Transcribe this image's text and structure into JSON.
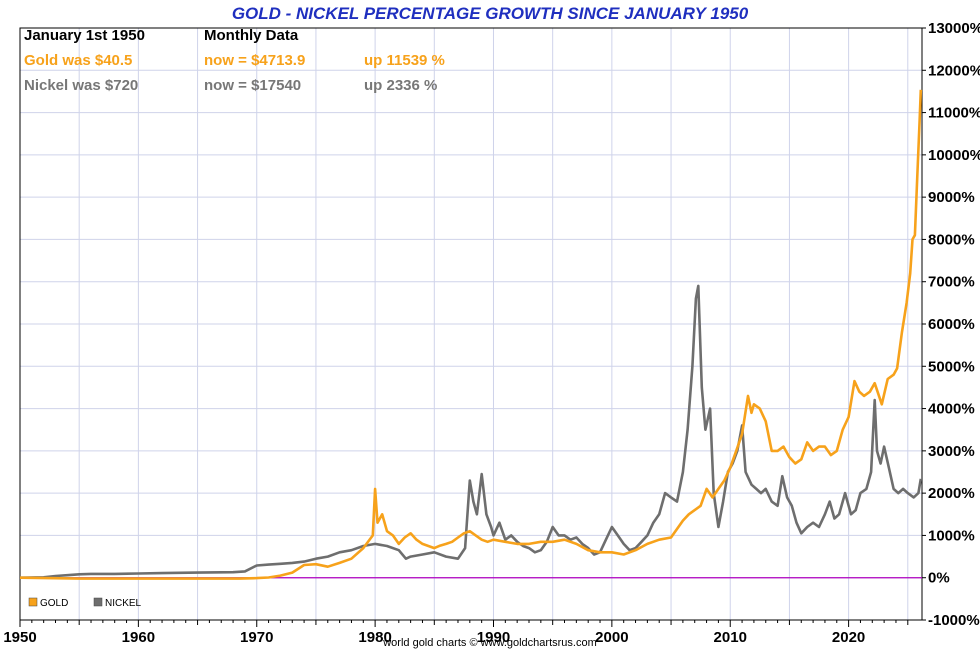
{
  "header": {
    "title": "GOLD - NICKEL PERCENTAGE GROWTH SINCE JANUARY 1950",
    "date_label": "January 1st 1950",
    "frequency_label": "Monthly Data",
    "gold_was": "Gold was $40.5",
    "gold_now": "now = $4713.9",
    "gold_up": "up 11539 %",
    "nickel_was": "Nickel was $720",
    "nickel_now": "now = $17540",
    "nickel_up": "up 2336 %"
  },
  "footer": {
    "credit": "world gold charts © www.goldchartsrus.com"
  },
  "colors": {
    "gold": "#f7a21b",
    "nickel": "#6e6e6e",
    "zero_line": "#b000c0",
    "grid": "#cfd3ea",
    "title": "#1f2fbf"
  },
  "chart_data": {
    "type": "line",
    "title": "GOLD - NICKEL PERCENTAGE GROWTH SINCE JANUARY 1950",
    "xlabel": "",
    "ylabel": "",
    "xlim": [
      1950,
      2026.2
    ],
    "ylim": [
      -1000,
      13000
    ],
    "x_ticks": [
      "1950",
      "1960",
      "1970",
      "1980",
      "1990",
      "2000",
      "2010",
      "2020"
    ],
    "x_tick_values": [
      1950,
      1960,
      1970,
      1980,
      1990,
      2000,
      2010,
      2020
    ],
    "y_ticks": [
      "-1000%",
      "0%",
      "1000%",
      "2000%",
      "3000%",
      "4000%",
      "5000%",
      "6000%",
      "7000%",
      "8000%",
      "9000%",
      "10000%",
      "11000%",
      "12000%",
      "13000%"
    ],
    "y_tick_values": [
      -1000,
      0,
      1000,
      2000,
      3000,
      4000,
      5000,
      6000,
      7000,
      8000,
      9000,
      10000,
      11000,
      12000,
      13000
    ],
    "grid": true,
    "legend_position": "bottom-left",
    "series": [
      {
        "name": "GOLD",
        "color": "#f7a21b",
        "points": [
          [
            1950,
            0
          ],
          [
            1955,
            -20
          ],
          [
            1960,
            -20
          ],
          [
            1965,
            -20
          ],
          [
            1968.5,
            -20
          ],
          [
            1970,
            -10
          ],
          [
            1971,
            5
          ],
          [
            1972,
            50
          ],
          [
            1973,
            120
          ],
          [
            1974,
            300
          ],
          [
            1975,
            320
          ],
          [
            1976,
            260
          ],
          [
            1977,
            350
          ],
          [
            1978,
            450
          ],
          [
            1979,
            700
          ],
          [
            1979.8,
            1000
          ],
          [
            1980.0,
            2100
          ],
          [
            1980.2,
            1300
          ],
          [
            1980.6,
            1500
          ],
          [
            1981,
            1100
          ],
          [
            1981.5,
            1000
          ],
          [
            1982,
            800
          ],
          [
            1982.5,
            950
          ],
          [
            1983,
            1050
          ],
          [
            1983.5,
            900
          ],
          [
            1984,
            800
          ],
          [
            1984.5,
            750
          ],
          [
            1985,
            700
          ],
          [
            1985.5,
            760
          ],
          [
            1986,
            800
          ],
          [
            1986.5,
            850
          ],
          [
            1987,
            950
          ],
          [
            1987.5,
            1050
          ],
          [
            1988,
            1100
          ],
          [
            1988.5,
            1000
          ],
          [
            1989,
            900
          ],
          [
            1989.5,
            850
          ],
          [
            1990,
            900
          ],
          [
            1991,
            850
          ],
          [
            1992,
            800
          ],
          [
            1993,
            800
          ],
          [
            1994,
            850
          ],
          [
            1995,
            850
          ],
          [
            1996,
            900
          ],
          [
            1997,
            800
          ],
          [
            1998,
            650
          ],
          [
            1999,
            600
          ],
          [
            2000,
            600
          ],
          [
            2001,
            550
          ],
          [
            2002,
            650
          ],
          [
            2003,
            800
          ],
          [
            2004,
            900
          ],
          [
            2005,
            950
          ],
          [
            2006,
            1350
          ],
          [
            2006.5,
            1500
          ],
          [
            2007,
            1600
          ],
          [
            2007.5,
            1700
          ],
          [
            2008,
            2100
          ],
          [
            2008.5,
            1900
          ],
          [
            2009,
            2100
          ],
          [
            2009.5,
            2300
          ],
          [
            2010,
            2600
          ],
          [
            2010.5,
            3000
          ],
          [
            2011,
            3400
          ],
          [
            2011.5,
            4300
          ],
          [
            2011.8,
            3900
          ],
          [
            2012,
            4100
          ],
          [
            2012.5,
            4000
          ],
          [
            2013,
            3700
          ],
          [
            2013.5,
            3000
          ],
          [
            2014,
            3000
          ],
          [
            2014.5,
            3100
          ],
          [
            2015,
            2850
          ],
          [
            2015.5,
            2700
          ],
          [
            2016,
            2800
          ],
          [
            2016.5,
            3200
          ],
          [
            2017,
            3000
          ],
          [
            2017.5,
            3100
          ],
          [
            2018,
            3100
          ],
          [
            2018.5,
            2900
          ],
          [
            2019,
            3000
          ],
          [
            2019.5,
            3500
          ],
          [
            2020,
            3800
          ],
          [
            2020.5,
            4650
          ],
          [
            2020.9,
            4400
          ],
          [
            2021.3,
            4300
          ],
          [
            2021.8,
            4400
          ],
          [
            2022.2,
            4600
          ],
          [
            2022.8,
            4100
          ],
          [
            2023.3,
            4700
          ],
          [
            2023.8,
            4800
          ],
          [
            2024.1,
            4950
          ],
          [
            2024.5,
            5800
          ],
          [
            2024.9,
            6500
          ],
          [
            2025.2,
            7200
          ],
          [
            2025.4,
            8000
          ],
          [
            2025.6,
            8100
          ],
          [
            2025.8,
            9500
          ],
          [
            2026.0,
            10800
          ],
          [
            2026.1,
            11539
          ]
        ]
      },
      {
        "name": "NICKEL",
        "color": "#6e6e6e",
        "points": [
          [
            1950,
            0
          ],
          [
            1952,
            10
          ],
          [
            1953,
            40
          ],
          [
            1954,
            60
          ],
          [
            1955,
            80
          ],
          [
            1956,
            90
          ],
          [
            1958,
            90
          ],
          [
            1960,
            100
          ],
          [
            1962,
            110
          ],
          [
            1965,
            120
          ],
          [
            1968,
            130
          ],
          [
            1969,
            150
          ],
          [
            1970,
            290
          ],
          [
            1971,
            310
          ],
          [
            1972,
            330
          ],
          [
            1973,
            350
          ],
          [
            1974,
            380
          ],
          [
            1975,
            450
          ],
          [
            1976,
            500
          ],
          [
            1977,
            600
          ],
          [
            1978,
            650
          ],
          [
            1979,
            750
          ],
          [
            1980,
            800
          ],
          [
            1981,
            750
          ],
          [
            1982,
            650
          ],
          [
            1982.6,
            450
          ],
          [
            1983,
            500
          ],
          [
            1984,
            550
          ],
          [
            1985,
            600
          ],
          [
            1986,
            500
          ],
          [
            1987,
            450
          ],
          [
            1987.6,
            700
          ],
          [
            1988.0,
            2300
          ],
          [
            1988.3,
            1800
          ],
          [
            1988.6,
            1500
          ],
          [
            1989.0,
            2450
          ],
          [
            1989.4,
            1500
          ],
          [
            1989.8,
            1200
          ],
          [
            1990,
            1000
          ],
          [
            1990.5,
            1300
          ],
          [
            1991,
            900
          ],
          [
            1991.5,
            1000
          ],
          [
            1992,
            850
          ],
          [
            1992.5,
            750
          ],
          [
            1993,
            700
          ],
          [
            1993.5,
            600
          ],
          [
            1994,
            650
          ],
          [
            1994.5,
            850
          ],
          [
            1995,
            1200
          ],
          [
            1995.5,
            1000
          ],
          [
            1996,
            1000
          ],
          [
            1996.5,
            900
          ],
          [
            1997,
            950
          ],
          [
            1997.5,
            800
          ],
          [
            1998,
            700
          ],
          [
            1998.5,
            550
          ],
          [
            1999,
            600
          ],
          [
            1999.5,
            900
          ],
          [
            2000,
            1200
          ],
          [
            2000.5,
            1000
          ],
          [
            2001,
            800
          ],
          [
            2001.5,
            650
          ],
          [
            2002,
            700
          ],
          [
            2002.5,
            850
          ],
          [
            2003,
            1000
          ],
          [
            2003.5,
            1300
          ],
          [
            2004,
            1500
          ],
          [
            2004.5,
            2000
          ],
          [
            2005,
            1900
          ],
          [
            2005.5,
            1800
          ],
          [
            2006,
            2500
          ],
          [
            2006.4,
            3500
          ],
          [
            2006.8,
            5000
          ],
          [
            2007.1,
            6600
          ],
          [
            2007.3,
            6900
          ],
          [
            2007.6,
            4500
          ],
          [
            2007.9,
            3500
          ],
          [
            2008.3,
            4000
          ],
          [
            2008.6,
            2000
          ],
          [
            2009.0,
            1200
          ],
          [
            2009.4,
            1800
          ],
          [
            2009.8,
            2500
          ],
          [
            2010.2,
            2700
          ],
          [
            2010.6,
            3000
          ],
          [
            2011.0,
            3600
          ],
          [
            2011.3,
            2500
          ],
          [
            2011.8,
            2200
          ],
          [
            2012.2,
            2100
          ],
          [
            2012.6,
            2000
          ],
          [
            2013.0,
            2100
          ],
          [
            2013.5,
            1800
          ],
          [
            2014.0,
            1700
          ],
          [
            2014.4,
            2400
          ],
          [
            2014.8,
            1900
          ],
          [
            2015.2,
            1700
          ],
          [
            2015.6,
            1300
          ],
          [
            2016.0,
            1050
          ],
          [
            2016.5,
            1200
          ],
          [
            2017.0,
            1300
          ],
          [
            2017.5,
            1200
          ],
          [
            2018.0,
            1500
          ],
          [
            2018.4,
            1800
          ],
          [
            2018.8,
            1400
          ],
          [
            2019.2,
            1500
          ],
          [
            2019.7,
            2000
          ],
          [
            2020.2,
            1500
          ],
          [
            2020.6,
            1600
          ],
          [
            2021.0,
            2000
          ],
          [
            2021.5,
            2100
          ],
          [
            2021.9,
            2500
          ],
          [
            2022.2,
            4200
          ],
          [
            2022.4,
            3000
          ],
          [
            2022.7,
            2700
          ],
          [
            2023.0,
            3100
          ],
          [
            2023.4,
            2600
          ],
          [
            2023.8,
            2100
          ],
          [
            2024.2,
            2000
          ],
          [
            2024.6,
            2100
          ],
          [
            2025.0,
            2000
          ],
          [
            2025.5,
            1900
          ],
          [
            2025.9,
            2000
          ],
          [
            2026.1,
            2336
          ]
        ]
      }
    ]
  }
}
